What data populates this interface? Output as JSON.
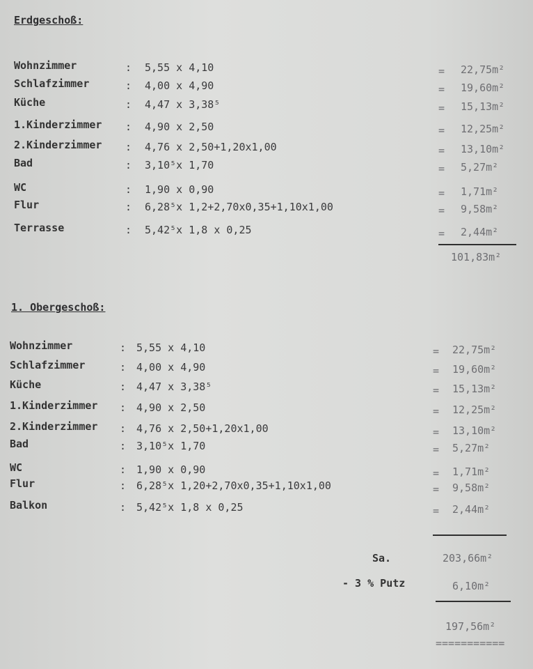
{
  "sections": [
    {
      "title": "Erdgeschoß:",
      "rows": [
        {
          "room": "Wohnzimmer",
          "dims": "5,55 x 4,10",
          "area": "22,75m²"
        },
        {
          "room": "Schlafzimmer",
          "dims": "4,00 x 4,90",
          "area": "19,60m²"
        },
        {
          "room": "Küche",
          "dims": "4,47 x 3,38⁵",
          "area": "15,13m²"
        },
        {
          "room": "1.Kinderzimmer",
          "dims": "4,90 x 2,50",
          "area": "12,25m²"
        },
        {
          "room": "2.Kinderzimmer",
          "dims": "4,76 x 2,50+1,20x1,00",
          "area": "13,10m²"
        },
        {
          "room": "Bad",
          "dims": "3,10⁵x 1,70",
          "area": "5,27m²"
        },
        {
          "room": "WC",
          "dims": "1,90 x 0,90",
          "area": "1,71m²"
        },
        {
          "room": "Flur",
          "dims": "6,28⁵x 1,2+2,70x0,35+1,10x1,00",
          "area": "9,58m²"
        },
        {
          "room": "Terrasse",
          "dims": "5,42⁵x 1,8 x 0,25",
          "area": "2,44m²"
        }
      ],
      "total": "101,83m²"
    },
    {
      "title": "1. Obergeschoß:",
      "rows": [
        {
          "room": "Wohnzimmer",
          "dims": "5,55 x 4,10",
          "area": "22,75m²"
        },
        {
          "room": "Schlafzimmer",
          "dims": "4,00 x 4,90",
          "area": "19,60m²"
        },
        {
          "room": "Küche",
          "dims": "4,47 x 3,38⁵",
          "area": "15,13m²"
        },
        {
          "room": "1.Kinderzimmer",
          "dims": "4,90 x 2,50",
          "area": "12,25m²"
        },
        {
          "room": "2.Kinderzimmer",
          "dims": "4,76 x 2,50+1,20x1,00",
          "area": "13,10m²"
        },
        {
          "room": "Bad",
          "dims": "3,10⁵x 1,70",
          "area": "5,27m²"
        },
        {
          "room": "WC",
          "dims": "1,90 x 0,90",
          "area": "1,71m²"
        },
        {
          "room": "Flur",
          "dims": "6,28⁵x 1,20+2,70x0,35+1,10x1,00",
          "area": "9,58m²"
        },
        {
          "room": "Balkon",
          "dims": "5,42⁵x 1,8 x 0,25",
          "area": "2,44m²"
        }
      ]
    }
  ],
  "sum": {
    "label": "Sa.",
    "value": "203,66m²"
  },
  "deduction": {
    "label": "- 3 % Putz",
    "value": "6,10m²"
  },
  "result": {
    "value": "197,56m²",
    "underline": "==========="
  },
  "colon": ":",
  "eq": "="
}
